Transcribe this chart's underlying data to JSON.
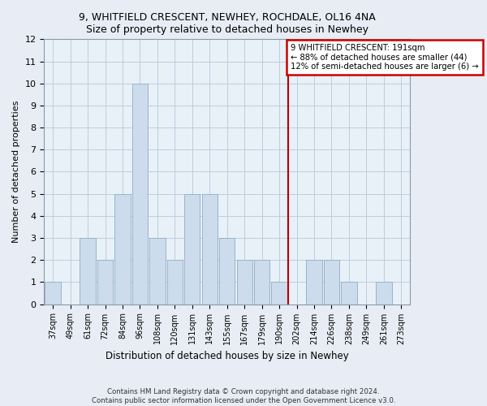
{
  "title1": "9, WHITFIELD CRESCENT, NEWHEY, ROCHDALE, OL16 4NA",
  "title2": "Size of property relative to detached houses in Newhey",
  "xlabel": "Distribution of detached houses by size in Newhey",
  "ylabel": "Number of detached properties",
  "categories": [
    "37sqm",
    "49sqm",
    "61sqm",
    "72sqm",
    "84sqm",
    "96sqm",
    "108sqm",
    "120sqm",
    "131sqm",
    "143sqm",
    "155sqm",
    "167sqm",
    "179sqm",
    "190sqm",
    "202sqm",
    "214sqm",
    "226sqm",
    "238sqm",
    "249sqm",
    "261sqm",
    "273sqm"
  ],
  "values": [
    1,
    0,
    3,
    2,
    5,
    10,
    3,
    2,
    5,
    5,
    3,
    2,
    2,
    1,
    0,
    2,
    2,
    1,
    0,
    1,
    0
  ],
  "bar_color": "#ccdcec",
  "bar_edge_color": "#9ab4c8",
  "vline_x": 13.5,
  "vline_color": "#bb0000",
  "annotation_title": "9 WHITFIELD CRESCENT: 191sqm",
  "annotation_line2": "← 88% of detached houses are smaller (44)",
  "annotation_line3": "12% of semi-detached houses are larger (6) →",
  "annotation_box_color": "#cc0000",
  "ylim": [
    0,
    12
  ],
  "yticks": [
    0,
    1,
    2,
    3,
    4,
    5,
    6,
    7,
    8,
    9,
    10,
    11,
    12
  ],
  "footer": "Contains HM Land Registry data © Crown copyright and database right 2024.\nContains public sector information licensed under the Open Government Licence v3.0.",
  "bg_color": "#e8ecf4",
  "plot_bg_color": "#e8f0f8",
  "grid_color": "#b8c8d8"
}
